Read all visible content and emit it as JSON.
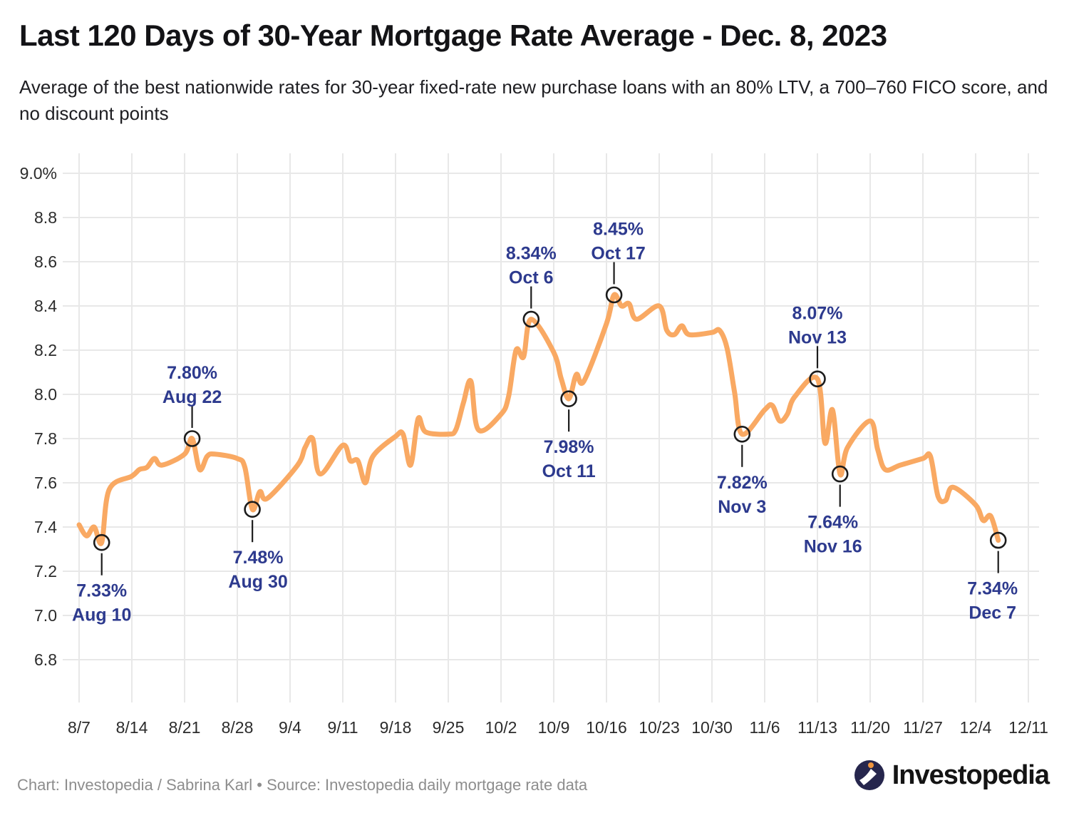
{
  "header": {
    "title": "Last 120 Days of 30-Year Mortgage Rate Average - Dec. 8, 2023",
    "subtitle": "Average of the best nationwide rates for 30-year fixed-rate new purchase loans with an 80% LTV, a 700–760 FICO score, and no discount points"
  },
  "footer": {
    "credit": "Chart: Investopedia / Sabrina Karl • Source: Investopedia daily mortgage rate data",
    "logo_text": "Investopedia"
  },
  "chart_data": {
    "type": "line",
    "title": "Last 120 Days of 30-Year Mortgage Rate Average - Dec. 8, 2023",
    "xlabel": "",
    "ylabel": "",
    "ylim": [
      6.7,
      9.05
    ],
    "grid": true,
    "legend": "none",
    "colors": {
      "line": "#F9A963",
      "annotation_text": "#2D3A8E",
      "grid": "#E8E8E8",
      "axis_text": "#2B2B2B",
      "marker_outline": "#1C1C1C"
    },
    "y_ticks": [
      {
        "label": "9.0%",
        "value": 9.0
      },
      {
        "label": "8.8",
        "value": 8.8
      },
      {
        "label": "8.6",
        "value": 8.6
      },
      {
        "label": "8.4",
        "value": 8.4
      },
      {
        "label": "8.2",
        "value": 8.2
      },
      {
        "label": "8.0",
        "value": 8.0
      },
      {
        "label": "7.8",
        "value": 7.8
      },
      {
        "label": "7.6",
        "value": 7.6
      },
      {
        "label": "7.4",
        "value": 7.4
      },
      {
        "label": "7.2",
        "value": 7.2
      },
      {
        "label": "7.0",
        "value": 7.0
      },
      {
        "label": "6.8",
        "value": 6.8
      }
    ],
    "x_ticks": [
      "8/7",
      "8/14",
      "8/21",
      "8/28",
      "9/4",
      "9/11",
      "9/18",
      "9/25",
      "10/2",
      "10/9",
      "10/16",
      "10/23",
      "10/30",
      "11/6",
      "11/13",
      "11/20",
      "11/27",
      "12/4",
      "12/11"
    ],
    "series": [
      {
        "name": "30-year mortgage rate average (%)",
        "points": [
          [
            "8/7",
            7.41
          ],
          [
            "8/8",
            7.36
          ],
          [
            "8/9",
            7.4
          ],
          [
            "8/10",
            7.33
          ],
          [
            "8/11",
            7.57
          ],
          [
            "8/14",
            7.63
          ],
          [
            "8/15",
            7.66
          ],
          [
            "8/16",
            7.67
          ],
          [
            "8/17",
            7.71
          ],
          [
            "8/18",
            7.68
          ],
          [
            "8/21",
            7.73
          ],
          [
            "8/22",
            7.8
          ],
          [
            "8/23",
            7.66
          ],
          [
            "8/24",
            7.72
          ],
          [
            "8/25",
            7.73
          ],
          [
            "8/28",
            7.71
          ],
          [
            "8/29",
            7.67
          ],
          [
            "8/30",
            7.48
          ],
          [
            "8/31",
            7.56
          ],
          [
            "9/1",
            7.53
          ],
          [
            "9/5",
            7.68
          ],
          [
            "9/6",
            7.76
          ],
          [
            "9/7",
            7.8
          ],
          [
            "9/8",
            7.64
          ],
          [
            "9/11",
            7.77
          ],
          [
            "9/12",
            7.7
          ],
          [
            "9/13",
            7.7
          ],
          [
            "9/14",
            7.6
          ],
          [
            "9/15",
            7.72
          ],
          [
            "9/18",
            7.81
          ],
          [
            "9/19",
            7.82
          ],
          [
            "9/20",
            7.68
          ],
          [
            "9/21",
            7.89
          ],
          [
            "9/22",
            7.83
          ],
          [
            "9/25",
            7.82
          ],
          [
            "9/26",
            7.84
          ],
          [
            "9/27",
            7.96
          ],
          [
            "9/28",
            8.06
          ],
          [
            "9/29",
            7.84
          ],
          [
            "10/2",
            7.91
          ],
          [
            "10/3",
            7.99
          ],
          [
            "10/4",
            8.2
          ],
          [
            "10/5",
            8.17
          ],
          [
            "10/6",
            8.34
          ],
          [
            "10/9",
            8.19
          ],
          [
            "10/10",
            8.07
          ],
          [
            "10/11",
            7.98
          ],
          [
            "10/12",
            8.09
          ],
          [
            "10/13",
            8.06
          ],
          [
            "10/16",
            8.32
          ],
          [
            "10/17",
            8.45
          ],
          [
            "10/18",
            8.4
          ],
          [
            "10/19",
            8.41
          ],
          [
            "10/20",
            8.34
          ],
          [
            "10/23",
            8.4
          ],
          [
            "10/24",
            8.29
          ],
          [
            "10/25",
            8.27
          ],
          [
            "10/26",
            8.31
          ],
          [
            "10/27",
            8.27
          ],
          [
            "10/30",
            8.28
          ],
          [
            "10/31",
            8.29
          ],
          [
            "11/1",
            8.21
          ],
          [
            "11/2",
            8.01
          ],
          [
            "11/3",
            7.82
          ],
          [
            "11/6",
            7.93
          ],
          [
            "11/7",
            7.95
          ],
          [
            "11/8",
            7.88
          ],
          [
            "11/9",
            7.91
          ],
          [
            "11/10",
            7.99
          ],
          [
            "11/13",
            8.07
          ],
          [
            "11/14",
            7.78
          ],
          [
            "11/15",
            7.93
          ],
          [
            "11/16",
            7.64
          ],
          [
            "11/17",
            7.76
          ],
          [
            "11/20",
            7.88
          ],
          [
            "11/21",
            7.75
          ],
          [
            "11/22",
            7.66
          ],
          [
            "11/24",
            7.68
          ],
          [
            "11/27",
            7.71
          ],
          [
            "11/28",
            7.72
          ],
          [
            "11/29",
            7.54
          ],
          [
            "11/30",
            7.52
          ],
          [
            "12/1",
            7.58
          ],
          [
            "12/4",
            7.5
          ],
          [
            "12/5",
            7.43
          ],
          [
            "12/6",
            7.45
          ],
          [
            "12/7",
            7.34
          ]
        ]
      }
    ],
    "annotations": [
      {
        "date": "8/10",
        "value": 7.33,
        "value_label": "7.33%",
        "date_label": "Aug 10",
        "position": "below"
      },
      {
        "date": "8/22",
        "value": 7.8,
        "value_label": "7.80%",
        "date_label": "Aug 22",
        "position": "above"
      },
      {
        "date": "8/30",
        "value": 7.48,
        "value_label": "7.48%",
        "date_label": "Aug 30",
        "position": "below"
      },
      {
        "date": "10/6",
        "value": 8.34,
        "value_label": "8.34%",
        "date_label": "Oct 6",
        "position": "above"
      },
      {
        "date": "10/11",
        "value": 7.98,
        "value_label": "7.98%",
        "date_label": "Oct 11",
        "position": "below"
      },
      {
        "date": "10/17",
        "value": 8.45,
        "value_label": "8.45%",
        "date_label": "Oct 17",
        "position": "above"
      },
      {
        "date": "11/3",
        "value": 7.82,
        "value_label": "7.82%",
        "date_label": "Nov 3",
        "position": "below"
      },
      {
        "date": "11/13",
        "value": 8.07,
        "value_label": "8.07%",
        "date_label": "Nov 13",
        "position": "above"
      },
      {
        "date": "11/16",
        "value": 7.64,
        "value_label": "7.64%",
        "date_label": "Nov 16",
        "position": "below"
      },
      {
        "date": "12/7",
        "value": 7.34,
        "value_label": "7.34%",
        "date_label": "Dec 7",
        "position": "below"
      }
    ],
    "logo_colors": {
      "circle": "#26264D",
      "dot": "#F0953E",
      "mark": "#FFFFFF"
    }
  }
}
